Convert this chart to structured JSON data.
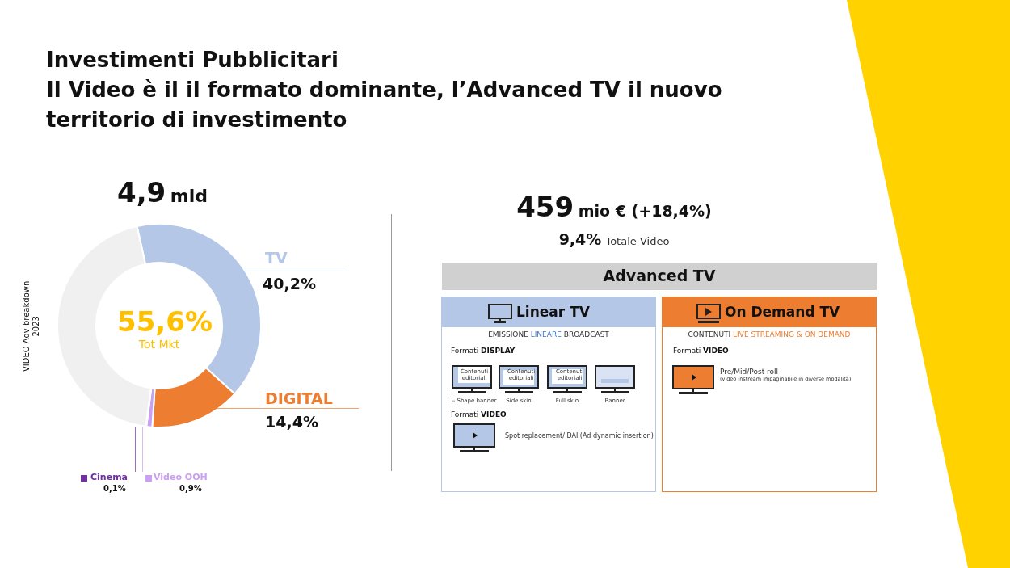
{
  "chart_data": {
    "type": "donut",
    "title": "Investimenti Pubblicitari",
    "subtitle": "Il Video è il il formato dominante, l’Advanced TV il nuovo territorio di investimento",
    "categories": [
      "TV",
      "DIGITAL",
      "Video OOH",
      "Cinema",
      null
    ],
    "values": [
      40.2,
      14.4,
      0.9,
      0.1,
      44.4
    ],
    "colors": [
      "#b4c7e7",
      "#ed7d31",
      "#c9a0f2",
      "#7030a0",
      "#f0f0f0"
    ],
    "legend": "bottom",
    "value_labels": [
      "40,2%",
      "14,4%",
      "0,9%",
      "0,1%",
      null
    ],
    "annotations": [
      "55,6%",
      "Tot Mkt",
      "VIDEO Adv breakdown",
      "2023",
      "459",
      "mio € (+18,4%)",
      "9,4%",
      "Totale Video",
      "Advanced TV",
      "Linear TV",
      "EMISSIONE",
      "LINEARE",
      "BROADCAST",
      "Formati",
      "DISPLAY",
      "Contenuti editoriali",
      "Contenuti editoriali",
      "Contenuti editoriali",
      "L – Shape banner",
      "Side skin",
      "Full skin",
      "Banner",
      "Formati",
      "VIDEO",
      "Spot replacement/ DAI (Ad dynamic insertion)",
      "On Demand TV",
      "CONTENUTI",
      "LIVE STREAMING & ON DEMAND",
      "Formati",
      "VIDEO",
      "Pre/Mid/Post roll",
      "(video instream impaginabile in diverse modalità)",
      "4,9",
      "mld"
    ]
  }
}
